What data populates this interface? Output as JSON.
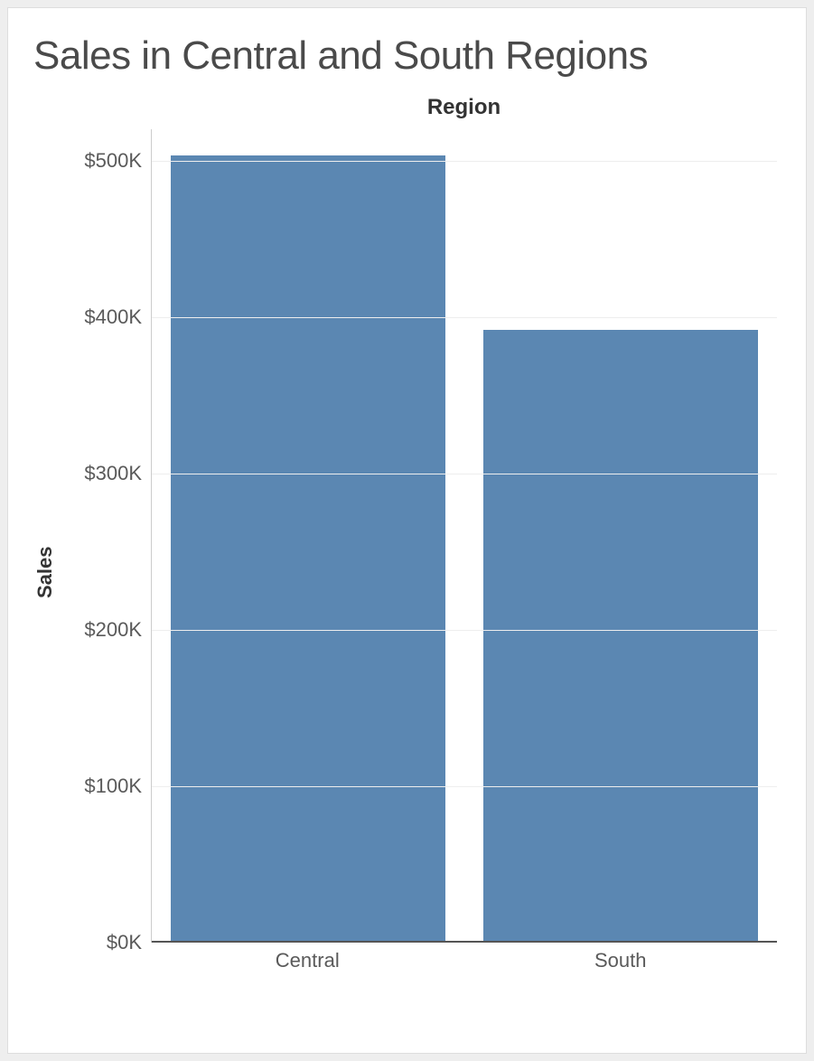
{
  "chart": {
    "type": "bar",
    "title": "Sales in Central and South Regions",
    "title_fontsize": 44,
    "title_color": "#4a4a4a",
    "x_axis_title": "Region",
    "y_axis_title": "Sales",
    "axis_title_fontsize": 22,
    "axis_title_color": "#333333",
    "tick_label_fontsize": 22,
    "tick_label_color": "#5a5a5a",
    "categories": [
      "Central",
      "South"
    ],
    "values": [
      503000,
      392000
    ],
    "bar_color": "#5b87b2",
    "bar_width_ratio": 0.88,
    "background_color": "#ffffff",
    "card_border_color": "#dddddd",
    "page_background_color": "#eeeeee",
    "y_axis": {
      "min": 0,
      "max": 520000,
      "tick_step": 100000,
      "tick_values": [
        0,
        100000,
        200000,
        300000,
        400000,
        500000
      ],
      "tick_labels": [
        "$0K",
        "$100K",
        "$200K",
        "$300K",
        "$400K",
        "$500K"
      ]
    },
    "grid_color": "#eeeeee",
    "axis_line_color": "#cccccc",
    "baseline_color": "#555555"
  }
}
